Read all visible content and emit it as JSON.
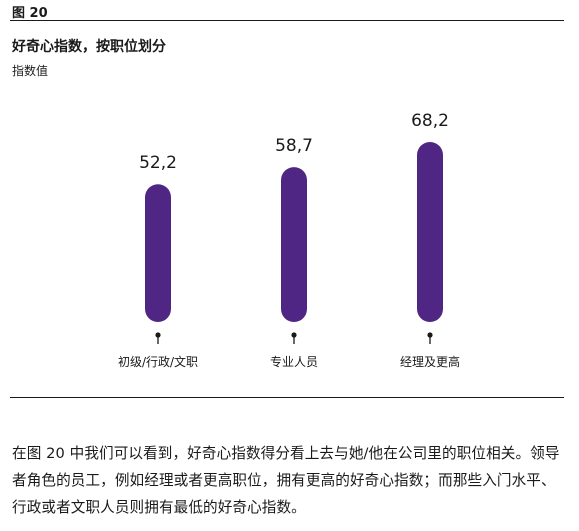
{
  "figure_label": "图 20",
  "chart_data": {
    "type": "bar",
    "title": "好奇心指数，按职位划分",
    "ylabel": "指数值",
    "xlabel": "",
    "categories": [
      "初级/行政/文职",
      "专业人员",
      "经理及更高"
    ],
    "values": [
      52.2,
      58.7,
      68.2
    ],
    "value_labels": [
      "52,2",
      "58,7",
      "68,2"
    ],
    "ylim": [
      0,
      80
    ],
    "grid": false,
    "legend": "none",
    "bar_color": "#4f2683"
  },
  "body_text": "在图 20 中我们可以看到，好奇心指数得分看上去与她/他在公司里的职位相关。领导者角色的员工，例如经理或者更高职位，拥有更高的好奇心指数；而那些入门水平、行政或者文职人员则拥有最低的好奇心指数。"
}
